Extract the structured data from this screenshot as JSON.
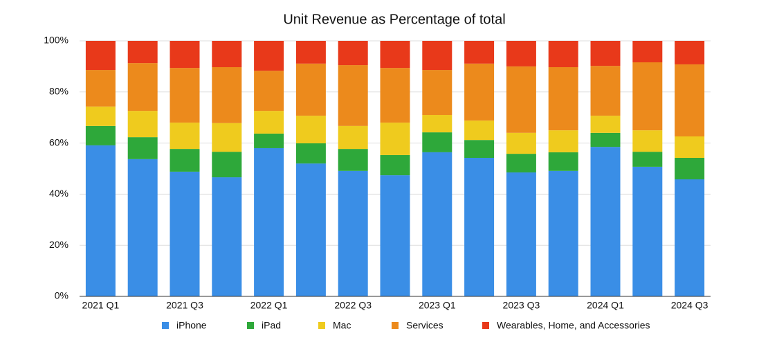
{
  "chart_data": {
    "type": "stacked_bar",
    "title": "Unit Revenue as Percentage of total",
    "categories": [
      "2021 Q1",
      null,
      "2021 Q3",
      null,
      "2022 Q1",
      null,
      "2022 Q3",
      null,
      "2023 Q1",
      null,
      "2023 Q3",
      null,
      "2024 Q1",
      null,
      "2024 Q3"
    ],
    "series": [
      {
        "name": "iPhone",
        "color": "#3a8ee6",
        "values": [
          59.1,
          53.7,
          48.8,
          46.6,
          58.0,
          52.0,
          49.1,
          47.4,
          56.4,
          54.2,
          48.5,
          49.1,
          58.5,
          50.7,
          45.8
        ]
      },
      {
        "name": "iPad",
        "color": "#2ea83a",
        "values": [
          7.6,
          8.6,
          8.9,
          10.0,
          5.7,
          7.9,
          8.6,
          7.9,
          7.8,
          7.0,
          7.3,
          7.3,
          5.5,
          5.9,
          8.4
        ]
      },
      {
        "name": "Mac",
        "color": "#efcb1e",
        "values": [
          7.6,
          10.3,
          10.3,
          11.2,
          8.9,
          10.8,
          9.0,
          12.7,
          6.8,
          7.6,
          8.2,
          8.6,
          6.7,
          8.4,
          8.4
        ]
      },
      {
        "name": "Services",
        "color": "#ec8a1c",
        "values": [
          14.3,
          18.7,
          21.4,
          21.9,
          15.7,
          20.4,
          23.8,
          21.4,
          17.6,
          22.3,
          26.0,
          24.7,
          19.5,
          26.6,
          28.2
        ]
      },
      {
        "name": "Wearables, Home, and Accessories",
        "color": "#e8391a",
        "values": [
          11.4,
          8.7,
          10.6,
          10.3,
          11.7,
          8.9,
          9.5,
          10.6,
          11.4,
          8.9,
          10.0,
          10.3,
          9.8,
          8.4,
          9.2
        ]
      }
    ],
    "ylim": [
      0,
      100
    ],
    "yticks": [
      {
        "value": 0,
        "label": "0%"
      },
      {
        "value": 20,
        "label": "20%"
      },
      {
        "value": 40,
        "label": "40%"
      },
      {
        "value": 60,
        "label": "60%"
      },
      {
        "value": 80,
        "label": "80%"
      },
      {
        "value": 100,
        "label": "100%"
      }
    ],
    "grid": true
  }
}
